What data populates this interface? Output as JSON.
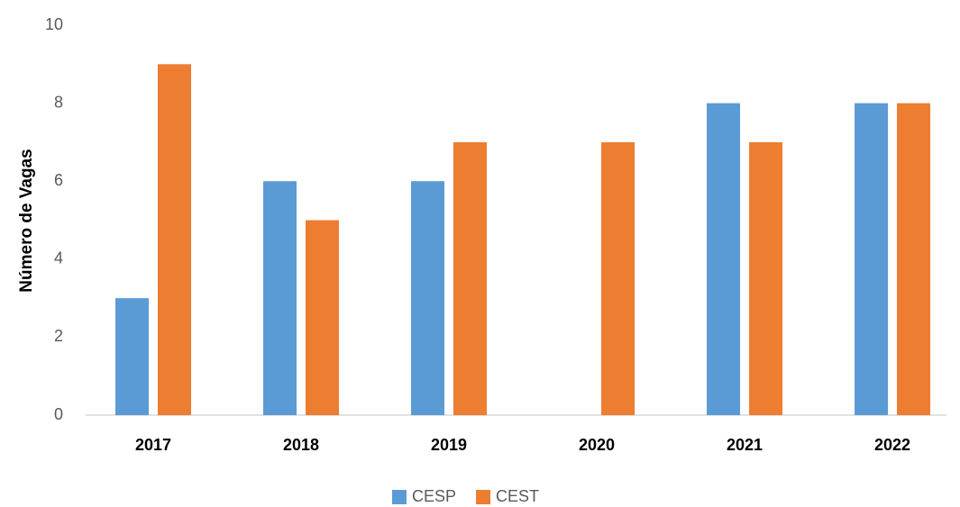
{
  "chart_data": {
    "type": "bar",
    "ylabel": "Número de Vagas",
    "categories": [
      "2017",
      "2018",
      "2019",
      "2020",
      "2021",
      "2022"
    ],
    "series": [
      {
        "name": "CESP",
        "color": "#5b9bd5",
        "values": [
          3,
          6,
          6,
          0,
          8,
          8
        ]
      },
      {
        "name": "CEST",
        "color": "#ed7d31",
        "values": [
          9,
          5,
          7,
          7,
          7,
          8
        ]
      }
    ],
    "ylim": [
      0,
      10
    ],
    "yticks": [
      0,
      2,
      4,
      6,
      8,
      10
    ],
    "grid": false,
    "legend": "bottom"
  }
}
